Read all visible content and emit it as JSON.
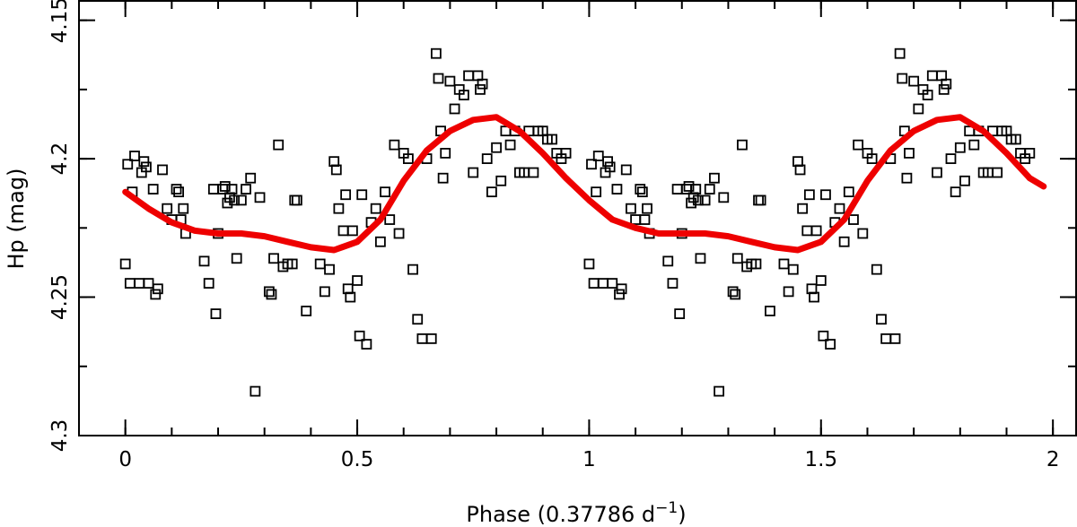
{
  "chart_data": {
    "type": "scatter",
    "title": "",
    "xlabel_main": "Phase (0.37786 d",
    "xlabel_sup": "−1",
    "xlabel_close": ")",
    "ylabel": "Hp (mag)",
    "xlim": [
      -0.1,
      2.05
    ],
    "ylim": [
      4.3,
      4.143
    ],
    "y_inverted": true,
    "grid": false,
    "x_ticks": [
      {
        "value": 0,
        "label": "0"
      },
      {
        "value": 0.5,
        "label": "0.5"
      },
      {
        "value": 1,
        "label": "1"
      },
      {
        "value": 1.5,
        "label": "1.5"
      },
      {
        "value": 2,
        "label": "2"
      }
    ],
    "y_ticks": [
      {
        "value": 4.15,
        "label": "4.15"
      },
      {
        "value": 4.2,
        "label": "4.2"
      },
      {
        "value": 4.25,
        "label": "4.25"
      },
      {
        "value": 4.3,
        "label": "4.3"
      }
    ],
    "x_minor_step": 0.1,
    "y_minor_step": 0.025,
    "series": [
      {
        "marker": "open-square",
        "color": "#000000",
        "x": [
          0.0,
          0.005,
          0.01,
          0.015,
          0.02,
          0.03,
          0.035,
          0.04,
          0.045,
          0.05,
          0.06,
          0.065,
          0.07,
          0.08,
          0.09,
          0.1,
          0.11,
          0.115,
          0.12,
          0.125,
          0.13,
          0.17,
          0.18,
          0.19,
          0.195,
          0.2,
          0.21,
          0.215,
          0.22,
          0.225,
          0.23,
          0.235,
          0.24,
          0.25,
          0.26,
          0.27,
          0.28,
          0.29,
          0.31,
          0.315,
          0.32,
          0.33,
          0.34,
          0.35,
          0.36,
          0.365,
          0.37,
          0.39,
          0.42,
          0.43,
          0.44,
          0.45,
          0.455,
          0.46,
          0.47,
          0.475,
          0.48,
          0.485,
          0.49,
          0.5,
          0.505,
          0.51,
          0.52,
          0.53,
          0.54,
          0.55,
          0.56,
          0.57,
          0.58,
          0.59,
          0.6,
          0.61,
          0.62,
          0.63,
          0.64,
          0.65,
          0.66,
          0.67,
          0.675,
          0.68,
          0.685,
          0.69,
          0.7,
          0.71,
          0.72,
          0.73,
          0.74,
          0.75,
          0.76,
          0.765,
          0.77,
          0.78,
          0.79,
          0.8,
          0.81,
          0.82,
          0.83,
          0.84,
          0.85,
          0.86,
          0.87,
          0.88,
          0.89,
          0.9,
          0.91,
          0.92,
          0.93,
          0.94,
          0.95
        ],
        "y": [
          4.238,
          4.202,
          4.245,
          4.212,
          4.199,
          4.245,
          4.205,
          4.201,
          4.203,
          4.245,
          4.211,
          4.249,
          4.247,
          4.204,
          4.218,
          4.222,
          4.211,
          4.212,
          4.222,
          4.218,
          4.227,
          4.237,
          4.245,
          4.211,
          4.256,
          4.227,
          4.211,
          4.21,
          4.216,
          4.214,
          4.211,
          4.215,
          4.236,
          4.215,
          4.211,
          4.207,
          4.284,
          4.214,
          4.248,
          4.249,
          4.236,
          4.195,
          4.239,
          4.238,
          4.238,
          4.215,
          4.215,
          4.255,
          4.238,
          4.248,
          4.24,
          4.201,
          4.204,
          4.218,
          4.226,
          4.213,
          4.247,
          4.25,
          4.226,
          4.244,
          4.264,
          4.213,
          4.267,
          4.223,
          4.218,
          4.23,
          4.212,
          4.222,
          4.195,
          4.227,
          4.198,
          4.2,
          4.24,
          4.258,
          4.265,
          4.2,
          4.265,
          4.162,
          4.171,
          4.19,
          4.207,
          4.198,
          4.172,
          4.182,
          4.175,
          4.177,
          4.17,
          4.205,
          4.17,
          4.175,
          4.173,
          4.2,
          4.212,
          4.196,
          4.208,
          4.19,
          4.195,
          4.19,
          4.205,
          4.205,
          4.19,
          4.205,
          4.19,
          4.19,
          4.193,
          4.193,
          4.198,
          4.2,
          4.198
        ]
      },
      {
        "name": "",
        "type": "line",
        "color": "#ee0000",
        "x": [
          0.0,
          0.05,
          0.1,
          0.15,
          0.2,
          0.25,
          0.3,
          0.35,
          0.4,
          0.45,
          0.5,
          0.55,
          0.6,
          0.65,
          0.7,
          0.75,
          0.8,
          0.85,
          0.9,
          0.95,
          1.0,
          1.05,
          1.1,
          1.15,
          1.2,
          1.25,
          1.3,
          1.35,
          1.4,
          1.45,
          1.5,
          1.55,
          1.6,
          1.65,
          1.7,
          1.75,
          1.8,
          1.85,
          1.9,
          1.95,
          1.98
        ],
        "y": [
          4.212,
          4.218,
          4.223,
          4.226,
          4.227,
          4.227,
          4.228,
          4.23,
          4.232,
          4.233,
          4.23,
          4.222,
          4.208,
          4.197,
          4.19,
          4.186,
          4.185,
          4.19,
          4.198,
          4.207,
          4.215,
          4.222,
          4.225,
          4.227,
          4.227,
          4.227,
          4.228,
          4.23,
          4.232,
          4.233,
          4.23,
          4.222,
          4.208,
          4.197,
          4.19,
          4.186,
          4.185,
          4.19,
          4.198,
          4.207,
          4.21
        ]
      }
    ]
  }
}
